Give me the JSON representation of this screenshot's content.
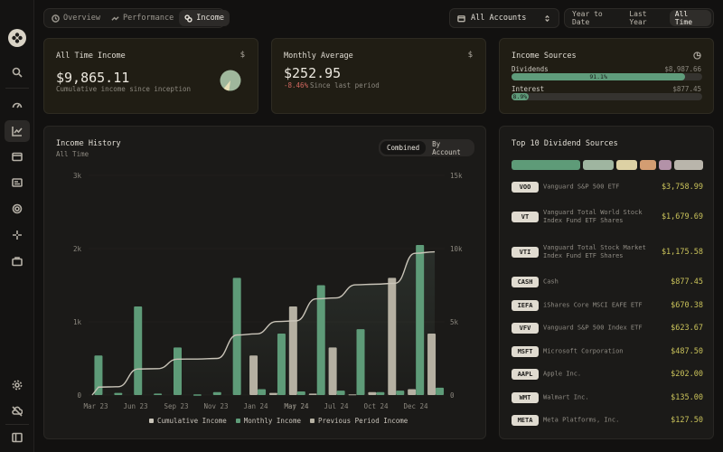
{
  "nav": {
    "tabs": [
      {
        "label": "Overview",
        "icon": "clock-icon"
      },
      {
        "label": "Performance",
        "icon": "trend-icon"
      },
      {
        "label": "Income",
        "icon": "coins-icon"
      }
    ],
    "active_tab": "Income"
  },
  "account_select": {
    "label": "All Accounts",
    "icon": "wallet-icon"
  },
  "ranges": {
    "items": [
      "Year to Date",
      "Last Year",
      "All Time"
    ],
    "active": "All Time"
  },
  "sidebar": {
    "icons": [
      "search-icon",
      "dashboard-icon",
      "chart-icon",
      "wallet-icon",
      "receipt-icon",
      "target-icon",
      "sparkle-icon",
      "briefcase-icon"
    ],
    "bottom_icons": [
      "settings-icon",
      "cloud-off-icon",
      "sidebar-toggle-icon"
    ]
  },
  "all_time_income": {
    "title": "All Time Income",
    "value": "$9,865.11",
    "subtitle": "Cumulative income since inception",
    "pie_fraction_dividends": 0.911
  },
  "monthly_average": {
    "title": "Monthly Average",
    "value": "$252.95",
    "change": "-8.46%",
    "change_label": "Since last period"
  },
  "income_sources": {
    "title": "Income Sources",
    "items": [
      {
        "label": "Dividends",
        "amount": "$8,987.66",
        "percent": "91.1%",
        "fraction": 0.911
      },
      {
        "label": "Interest",
        "amount": "$877.45",
        "percent": "8.9%",
        "fraction": 0.089
      }
    ]
  },
  "income_history": {
    "title": "Income History",
    "subtitle": "All Time",
    "toggle": [
      "Combined",
      "By Account"
    ],
    "toggle_active": "Combined",
    "legend": [
      "Cumulative Income",
      "Monthly Income",
      "Previous Period Income"
    ]
  },
  "chart_data": {
    "type": "bar",
    "x_tick_labels": [
      "Mar 23",
      "Jun 23",
      "Sep 23",
      "Nov 23",
      "Jan 24",
      "Mar 24",
      "May 24",
      "Jul 24",
      "Oct 24",
      "Dec 24"
    ],
    "y_left_ticks": [
      "0",
      "1k",
      "2k",
      "3k"
    ],
    "y_right_ticks": [
      "0",
      "5k",
      "10k",
      "15k"
    ],
    "ylim_left": [
      0,
      3000
    ],
    "ylim_right": [
      0,
      15000
    ],
    "series": [
      {
        "name": "Monthly Income",
        "color": "#5e9b78",
        "values": [
          540,
          30,
          1210,
          20,
          650,
          10,
          40,
          1600,
          80,
          840,
          50,
          1500,
          60,
          900,
          40,
          60,
          2050,
          100
        ]
      },
      {
        "name": "Previous Period Income",
        "color": "#b5b0a2",
        "values": [
          0,
          0,
          0,
          0,
          0,
          0,
          0,
          0,
          540,
          30,
          1210,
          20,
          650,
          10,
          40,
          1600,
          80,
          840
        ]
      },
      {
        "name": "Cumulative Income",
        "color": "#c9c4b8",
        "values": [
          540,
          570,
          1780,
          1800,
          2450,
          2460,
          2500,
          4100,
          4180,
          5020,
          5070,
          6570,
          6630,
          7530,
          7570,
          7630,
          9680,
          9780
        ]
      }
    ]
  },
  "top_dividends": {
    "title": "Top 10 Dividend Sources",
    "strip_colors": [
      "#5e9b78",
      "#9fb5a0",
      "#ddd1a4",
      "#d39d72",
      "#b392a8",
      "#b9b5ab"
    ],
    "strip_weights": [
      3.75,
      1.68,
      1.18,
      0.88,
      0.67,
      1.6
    ],
    "items": [
      {
        "ticker": "VOO",
        "name": "Vanguard S&P 500 ETF",
        "amount": "$3,758.99"
      },
      {
        "ticker": "VT",
        "name": "Vanguard Total World Stock Index Fund ETF Shares",
        "amount": "$1,679.69"
      },
      {
        "ticker": "VTI",
        "name": "Vanguard Total Stock Market Index Fund ETF Shares",
        "amount": "$1,175.58"
      },
      {
        "ticker": "CASH",
        "name": "Cash",
        "amount": "$877.45"
      },
      {
        "ticker": "IEFA",
        "name": "iShares Core MSCI EAFE ETF",
        "amount": "$670.38"
      },
      {
        "ticker": "VFV",
        "name": "Vanguard S&P 500 Index ETF",
        "amount": "$623.67"
      },
      {
        "ticker": "MSFT",
        "name": "Microsoft Corporation",
        "amount": "$487.50"
      },
      {
        "ticker": "AAPL",
        "name": "Apple Inc.",
        "amount": "$202.00"
      },
      {
        "ticker": "WMT",
        "name": "Walmart Inc.",
        "amount": "$135.00"
      },
      {
        "ticker": "META",
        "name": "Meta Platforms, Inc.",
        "amount": "$127.50"
      }
    ]
  }
}
